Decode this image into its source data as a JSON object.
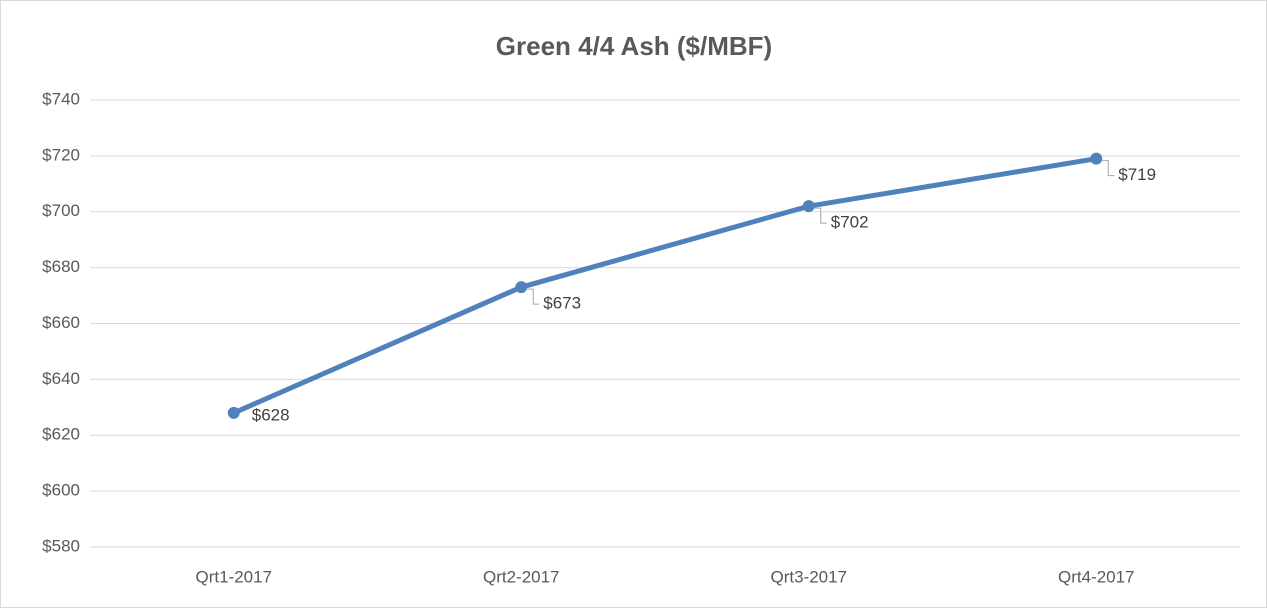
{
  "chart_data": {
    "type": "line",
    "title": "Green 4/4 Ash ($/MBF)",
    "categories": [
      "Qrt1-2017",
      "Qrt2-2017",
      "Qrt3-2017",
      "Qrt4-2017"
    ],
    "values": [
      628,
      673,
      702,
      719
    ],
    "value_labels": [
      "$628",
      "$673",
      "$702",
      "$719"
    ],
    "color": "#4f81bd",
    "ylim": [
      580,
      740
    ],
    "yticks": [
      {
        "value": 580,
        "label": "$580"
      },
      {
        "value": 600,
        "label": "$600"
      },
      {
        "value": 620,
        "label": "$620"
      },
      {
        "value": 640,
        "label": "$640"
      },
      {
        "value": 660,
        "label": "$660"
      },
      {
        "value": 680,
        "label": "$680"
      },
      {
        "value": 700,
        "label": "$700"
      },
      {
        "value": 720,
        "label": "$720"
      },
      {
        "value": 740,
        "label": "$740"
      }
    ],
    "grid": true
  }
}
